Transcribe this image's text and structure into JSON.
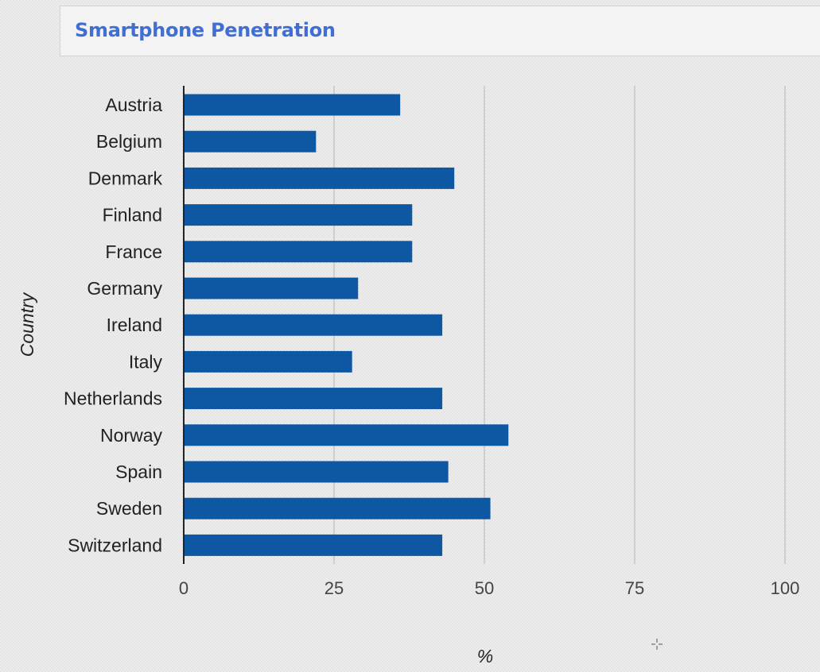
{
  "header": {
    "title": "Smartphone Penetration"
  },
  "chart_data": {
    "type": "bar",
    "orientation": "horizontal",
    "title": "Smartphone Penetration",
    "xlabel": "%",
    "ylabel": "Country",
    "xlim": [
      0,
      100
    ],
    "xticks": [
      "0",
      "25",
      "50",
      "75",
      "100"
    ],
    "grid": true,
    "bar_color": "#0d57a3",
    "categories": [
      "Austria",
      "Belgium",
      "Denmark",
      "Finland",
      "France",
      "Germany",
      "Ireland",
      "Italy",
      "Netherlands",
      "Norway",
      "Spain",
      "Sweden",
      "Switzerland"
    ],
    "values": [
      36,
      22,
      45,
      38,
      38,
      29,
      43,
      28,
      43,
      54,
      44,
      51,
      43
    ]
  }
}
